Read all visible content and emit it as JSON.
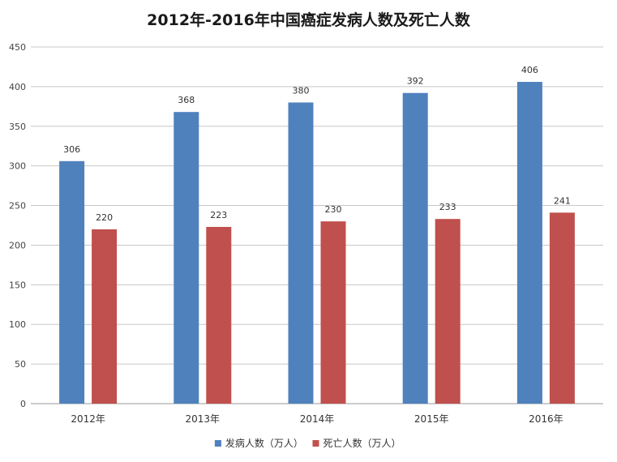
{
  "chart_data": {
    "type": "bar",
    "title": "2012年-2016年中国癌症发病人数及死亡人数",
    "categories": [
      "2012年",
      "2013年",
      "2014年",
      "2015年",
      "2016年"
    ],
    "series": [
      {
        "name": "发病人数（万人）",
        "values": [
          306,
          368,
          380,
          392,
          406
        ],
        "color": "#4F81BD"
      },
      {
        "name": "死亡人数（万人）",
        "values": [
          220,
          223,
          230,
          233,
          241
        ],
        "color": "#C0504D"
      }
    ],
    "ylim": [
      0,
      450
    ],
    "yticks": [
      0,
      50,
      100,
      150,
      200,
      250,
      300,
      350,
      400,
      450
    ],
    "grid": true,
    "legend_position": "bottom",
    "xlabel": "",
    "ylabel": ""
  }
}
